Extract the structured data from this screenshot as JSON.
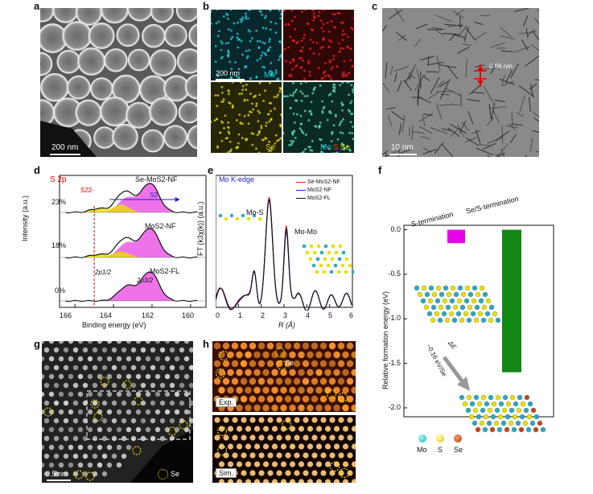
{
  "panels": {
    "a": {
      "label": "a",
      "scale_bar": "200 nm"
    },
    "b": {
      "label": "b",
      "scale_bar": "200 nm",
      "maps": [
        "Mo",
        "S",
        "Se"
      ],
      "overlay": [
        "Mo",
        "S",
        "Se"
      ]
    },
    "c": {
      "label": "c",
      "scale_bar": "10 nm",
      "spacing": "0.66 nm"
    },
    "d": {
      "label": "d",
      "title": "S 2p",
      "ylabel": "Intensity (a.u.)",
      "xlabel": "Binding energy (eV)",
      "xticks": [
        "166",
        "164",
        "162",
        "160"
      ],
      "curves": [
        "Se-MoS2-NF",
        "MoS2-NF",
        "MoS2-FL"
      ],
      "percents": [
        "23%",
        "18%",
        "0%"
      ],
      "species": [
        "S2-",
        "S22-"
      ],
      "peaks": [
        "2p1/2",
        "2p3/2"
      ]
    },
    "e": {
      "label": "e",
      "title": "Mo K-edge",
      "ylabel": "FT (k3χ(k)) (a.u.)",
      "xlabel": "R (Å)",
      "xticks": [
        "0",
        "1",
        "2",
        "3",
        "4",
        "5",
        "6"
      ],
      "legend": [
        "Se-MoS2-NF",
        "MoS2-NF",
        "MoS2-FL"
      ],
      "annotations": [
        "Mo-S",
        "Mo-Mo"
      ]
    },
    "f": {
      "label": "f",
      "ylabel": "Relative formation energy (eV)",
      "yticks": [
        "0.0",
        "-0.5",
        "-1.0",
        "-1.5",
        "-2.0"
      ],
      "categories": [
        "S-termination",
        "Se/S-termination"
      ],
      "arrow_label": "−0.16 eV/Se",
      "delta": "ΔE",
      "atoms": [
        "Mo",
        "S",
        "Se"
      ]
    },
    "g": {
      "label": "g",
      "scale_bar": "0.5 nm",
      "legend": "Se"
    },
    "h": {
      "label": "h",
      "insets": [
        "Exp.",
        "Sim."
      ],
      "marker": "Se"
    }
  },
  "chart_data": [
    {
      "type": "bar",
      "panel": "f",
      "categories": [
        "S-termination",
        "Se/S-termination"
      ],
      "values": [
        -0.15,
        -1.6
      ],
      "ylim": [
        -2.1,
        0.05
      ],
      "ylabel": "Relative formation energy (eV)",
      "colors": [
        "#e800e8",
        "#118811"
      ]
    }
  ],
  "colors": {
    "mo": "#2ab0c8",
    "s": "#e8e000",
    "se": "#c04818",
    "magenta": "#e000d8",
    "green": "#118811"
  }
}
